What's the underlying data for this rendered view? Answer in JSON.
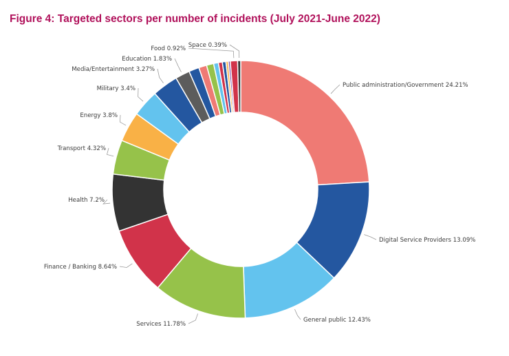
{
  "figure": {
    "title": "Figure 4: Targeted sectors per number of incidents (July 2021-June 2022)"
  },
  "chart_data": {
    "type": "pie",
    "donut": true,
    "legend": "none",
    "slices": [
      {
        "name": "Public administration/Government",
        "value": 24.21,
        "color": "#ef7a74",
        "label": "Public administration/Government 24.21%"
      },
      {
        "name": "Digital Service Providers",
        "value": 13.09,
        "color": "#2457a0",
        "label": "Digital Service Providers 13.09%"
      },
      {
        "name": "General public",
        "value": 12.43,
        "color": "#63c3ee",
        "label": "General public 12.43%"
      },
      {
        "name": "Services",
        "value": 11.78,
        "color": "#96c24a",
        "label": "Services 11.78%"
      },
      {
        "name": "Finance / Banking",
        "value": 8.64,
        "color": "#d1334a",
        "label": "Finance / Banking 8.64%"
      },
      {
        "name": "Health",
        "value": 7.2,
        "color": "#333333",
        "label": "Health 7.2%"
      },
      {
        "name": "Transport",
        "value": 4.32,
        "color": "#96c24a",
        "label": "Transport 4.32%"
      },
      {
        "name": "Energy",
        "value": 3.8,
        "color": "#f9b146",
        "label": "Energy 3.8%"
      },
      {
        "name": "Military",
        "value": 3.4,
        "color": "#63c3ee",
        "label": "Military 3.4%"
      },
      {
        "name": "Media/Entertainment",
        "value": 3.27,
        "color": "#2457a0",
        "label": "Media/Entertainment 3.27%"
      },
      {
        "name": "Education",
        "value": 1.83,
        "color": "#5c5c5c",
        "label": "Education 1.83%"
      },
      {
        "name": "",
        "value": 1.3,
        "color": "#2457a0",
        "label": ""
      },
      {
        "name": "",
        "value": 1.0,
        "color": "#ef7a74",
        "label": ""
      },
      {
        "name": "",
        "value": 0.9,
        "color": "#96c24a",
        "label": ""
      },
      {
        "name": "",
        "value": 0.6,
        "color": "#63c3ee",
        "label": ""
      },
      {
        "name": "",
        "value": 0.5,
        "color": "#d1334a",
        "label": ""
      },
      {
        "name": "",
        "value": 0.45,
        "color": "#2457a0",
        "label": ""
      },
      {
        "name": "",
        "value": 0.3,
        "color": "#f9b146",
        "label": ""
      },
      {
        "name": "",
        "value": 0.25,
        "color": "#7a4aa6",
        "label": ""
      },
      {
        "name": "Food",
        "value": 0.92,
        "color": "#d1334a",
        "label": "Food 0.92%"
      },
      {
        "name": "Space",
        "value": 0.39,
        "color": "#333333",
        "label": "Space 0.39%"
      }
    ]
  }
}
